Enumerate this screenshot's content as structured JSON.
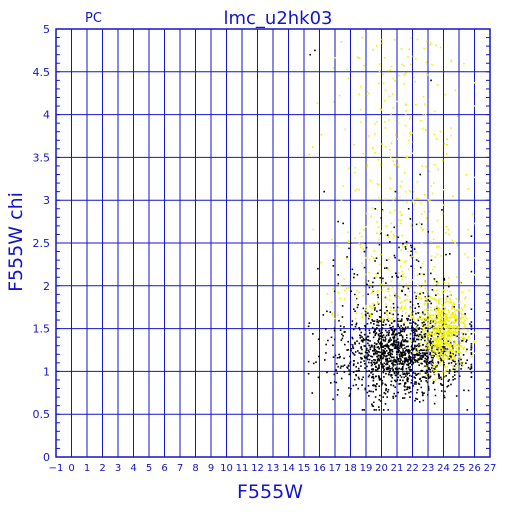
{
  "header": {
    "corner_label": "PC",
    "title": "lmc_u2hk03"
  },
  "colors": {
    "axis": "#1515c8",
    "grid": "#1515c8",
    "point_black": "#000000",
    "point_yellow": "#f2f200",
    "background": "#ffffff"
  },
  "chart_data": {
    "type": "scatter",
    "title": "lmc_u2hk03",
    "xlabel": "F555W",
    "ylabel": "F555W  chi",
    "xlim": [
      -1,
      27
    ],
    "ylim": [
      0,
      5
    ],
    "grid": true,
    "x_ticks": [
      "−1",
      "0",
      "1",
      "2",
      "3",
      "4",
      "5",
      "6",
      "7",
      "8",
      "9",
      "10",
      "11",
      "12",
      "13",
      "14",
      "15",
      "16",
      "17",
      "18",
      "19",
      "20",
      "21",
      "22",
      "23",
      "24",
      "25",
      "26",
      "27"
    ],
    "y_ticks": [
      "0",
      "0.5",
      "1",
      "1.5",
      "2",
      "2.5",
      "3",
      "3.5",
      "4",
      "4.5",
      "5"
    ],
    "series": [
      {
        "color": "black",
        "point_count": 1500,
        "x_range": [
          15.3,
          25.8
        ],
        "y_range": [
          0.55,
          4.8
        ],
        "core": {
          "x_mean": 21.2,
          "x_sd": 2.0,
          "y_mean": 1.2,
          "y_sd": 0.25
        },
        "outliers": [
          [
            15.7,
            4.75
          ],
          [
            15.4,
            4.7
          ],
          [
            16.3,
            3.1
          ],
          [
            17.2,
            2.75
          ],
          [
            18.0,
            2.5
          ],
          [
            19.6,
            2.9
          ],
          [
            20.9,
            3.1
          ],
          [
            23.2,
            4.4
          ],
          [
            22.5,
            3.3
          ],
          [
            16.9,
            2.3
          ],
          [
            18.9,
            2.4
          ],
          [
            15.9,
            2.2
          ]
        ]
      },
      {
        "color": "yellow",
        "point_count": 1100,
        "x_range": [
          15.3,
          26.0
        ],
        "y_range": [
          0.9,
          4.9
        ],
        "core": {
          "x_mean": 24.0,
          "x_sd": 0.75,
          "y_mean": 1.45,
          "y_sd": 0.22
        },
        "halo": {
          "x_mean": 21.3,
          "x_sd": 2.1,
          "y_min": 1.6,
          "y_max": 4.9
        }
      }
    ]
  }
}
